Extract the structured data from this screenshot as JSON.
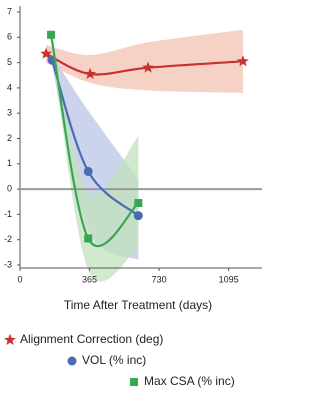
{
  "chart_data": {
    "type": "line",
    "x_label": "Time After Treatment (days)",
    "xlim": [
      0,
      1270
    ],
    "xticks": [
      0,
      365,
      730,
      1095
    ],
    "ylim": [
      -3,
      7
    ],
    "yticks": [
      -3,
      -2,
      -1,
      0,
      1,
      2,
      3,
      4,
      5,
      6,
      7
    ],
    "zero_line": true,
    "series": [
      {
        "name": "Alignment Correction (deg)",
        "color": "#c8312f",
        "band_color": "#f3c2b3",
        "marker": "star",
        "x": [
          137,
          368,
          672,
          1170
        ],
        "values": [
          5.35,
          4.55,
          4.8,
          5.05
        ],
        "band_upper": [
          5.7,
          5.3,
          5.8,
          6.3
        ],
        "band_lower": [
          5.0,
          4.2,
          3.9,
          3.8
        ]
      },
      {
        "name": "VOL (% inc)",
        "color": "#4a6cb3",
        "band_color": "#b9c6e6",
        "marker": "circle",
        "x": [
          168,
          358,
          621
        ],
        "values": [
          5.1,
          0.7,
          -1.05
        ],
        "band_upper": [
          5.3,
          3.1,
          0.4
        ],
        "band_lower": [
          4.9,
          -1.6,
          -2.8
        ]
      },
      {
        "name": "Max CSA (% inc)",
        "color": "#3aa655",
        "band_color": "#c2e2bb",
        "marker": "square",
        "x": [
          163,
          358,
          621
        ],
        "values": [
          6.1,
          -1.95,
          -0.55
        ],
        "band_upper": [
          6.3,
          -0.1,
          2.1
        ],
        "band_lower": [
          5.9,
          -3.2,
          -2.3
        ]
      }
    ]
  }
}
